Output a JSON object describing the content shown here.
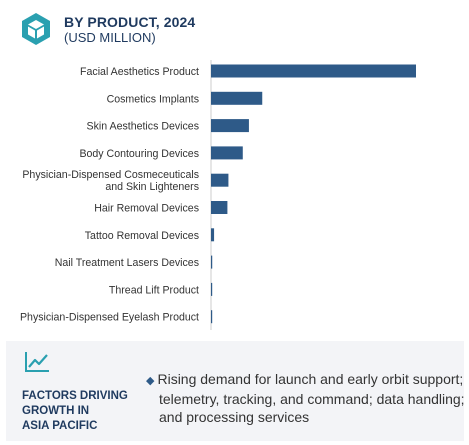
{
  "header": {
    "title": "BY PRODUCT, 2024",
    "subtitle": "(USD MILLION)",
    "logo_icon": "cube-hexagon-icon"
  },
  "colors": {
    "bar": "#2e5a88",
    "axis": "#cccccc",
    "label": "#333333",
    "logo": "#2aa0b0",
    "footer_bg": "#f3f4f7",
    "heading": "#1f3a5f"
  },
  "chart_data": {
    "type": "bar",
    "orientation": "horizontal",
    "title": "BY PRODUCT, 2024",
    "subtitle": "(USD MILLION)",
    "categories": [
      "Facial Aesthetics Product",
      "Cosmetics Implants",
      "Skin Aesthetics Devices",
      "Body Contouring Devices",
      "Physician-Dispensed Cosmeceuticals\nand Skin Lighteners",
      "Hair Removal Devices",
      "Tattoo Removal Devices",
      "Nail Treatment Lasers Devices",
      "Thread Lift Product",
      "Physician-Dispensed Eyelash Product"
    ],
    "values": [
      100,
      25,
      18.5,
      15.5,
      8.5,
      8,
      1.5,
      0.6,
      0.5,
      0.4
    ],
    "xlim": [
      0,
      100
    ],
    "grid": false,
    "legend": "none"
  },
  "footer": {
    "icon": "trend-line-icon",
    "heading": "FACTORS DRIVING\nGROWTH IN\nASIA PACIFIC",
    "bullet_icon": "diamond-bullet-icon",
    "bullet": "Rising demand for launch and early orbit support; telemetry, tracking, and command; data handling; and processing services"
  }
}
